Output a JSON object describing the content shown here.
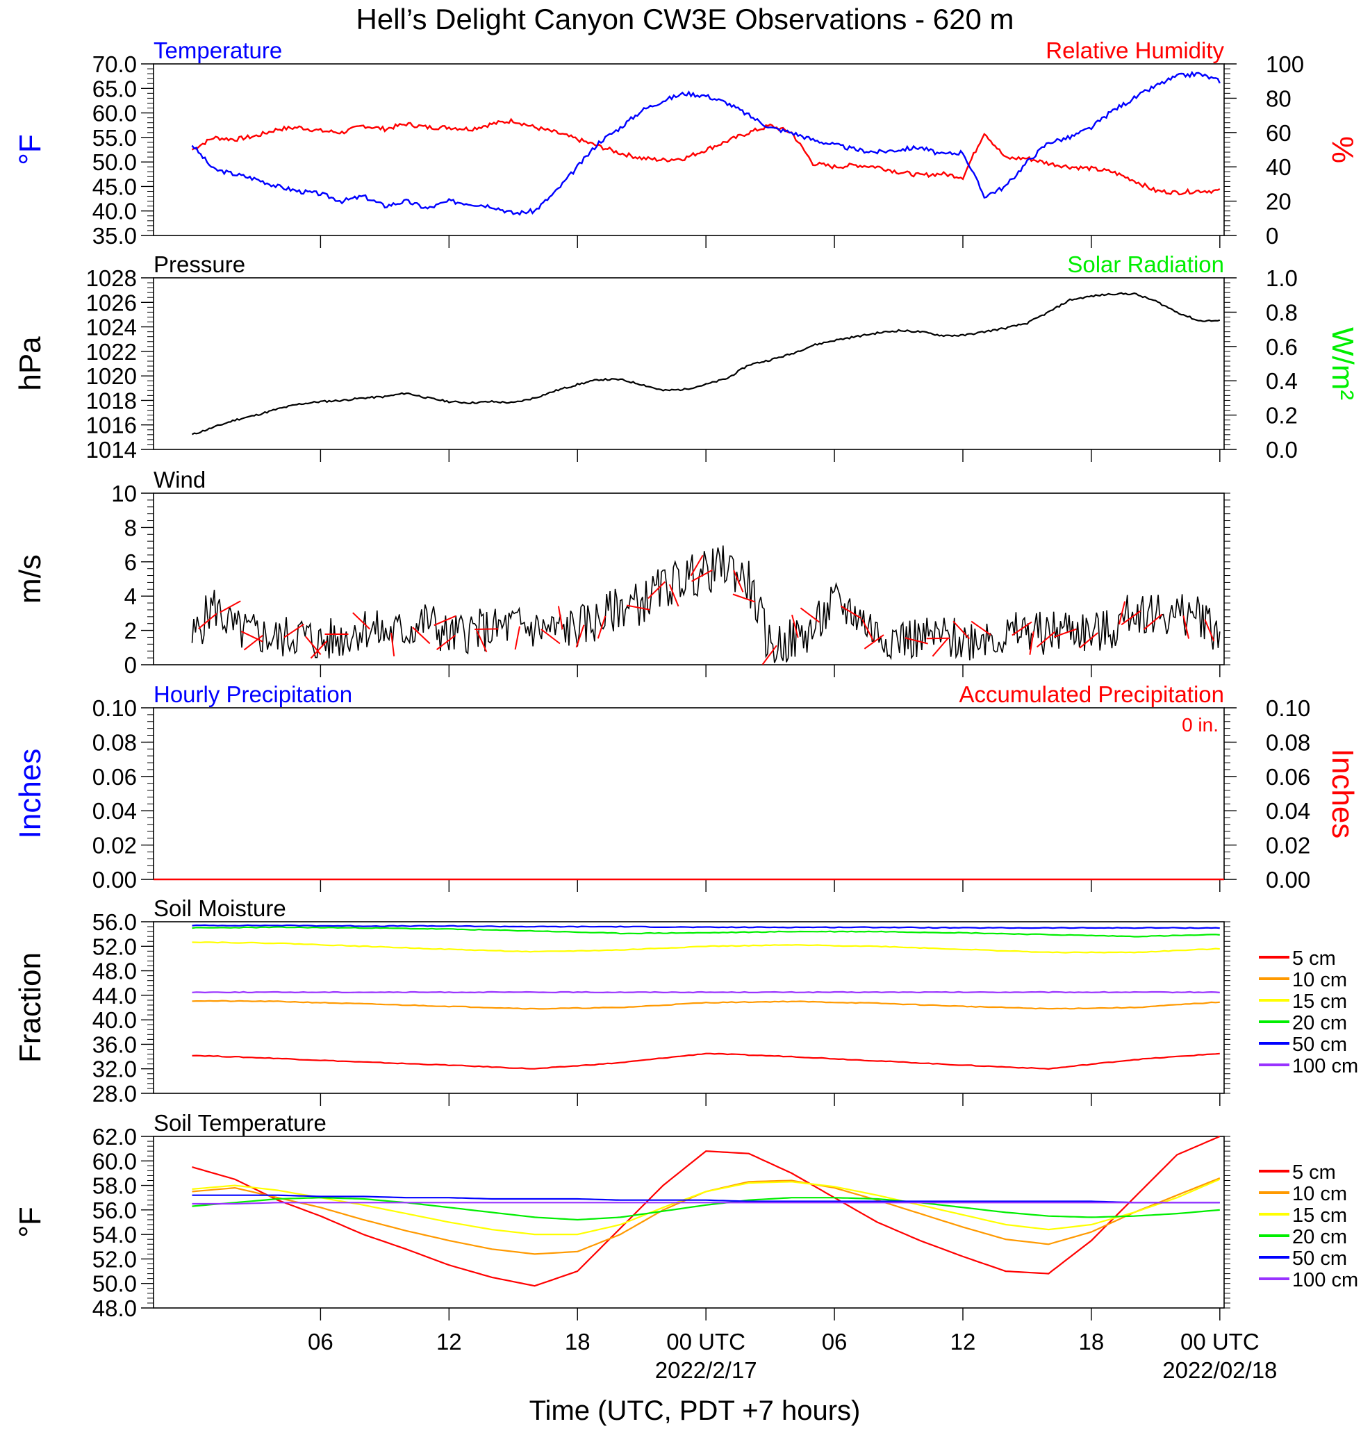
{
  "title": "Hell’s Delight Canyon CW3E Observations - 620 m",
  "xaxis": {
    "label": "Time (UTC, PDT +7 hours)",
    "ticks": [
      "06",
      "12",
      "18",
      "00 UTC",
      "06",
      "12",
      "18",
      "00 UTC"
    ],
    "date_labels": [
      "2022/2/17",
      "2022/02/18"
    ]
  },
  "colors": {
    "temperature": "#0000ff",
    "humidity": "#ff0000",
    "pressure": "#000000",
    "solar": "#00ee00",
    "wind": "#000000",
    "barb": "#ff0000",
    "hourly_precip": "#0000ff",
    "accum_precip": "#ff0000",
    "soil_5cm": "#ff0000",
    "soil_10cm": "#ff9900",
    "soil_15cm": "#ffff00",
    "soil_20cm": "#00ee00",
    "soil_50cm": "#0000ff",
    "soil_100cm": "#9933ff"
  },
  "panels": {
    "temp_rh": {
      "left_title": "Temperature",
      "right_title": "Relative Humidity",
      "left_unit": "°F",
      "right_unit": "%",
      "left_ticks": [
        "70.0",
        "65.0",
        "60.0",
        "55.0",
        "50.0",
        "45.0",
        "40.0",
        "35.0"
      ],
      "right_ticks": [
        "100",
        "80",
        "60",
        "40",
        "20",
        "0"
      ]
    },
    "pressure": {
      "left_title": "Pressure",
      "right_title": "Solar Radiation",
      "left_unit": "hPa",
      "right_unit": "W/m²",
      "left_ticks": [
        "1028",
        "1026",
        "1024",
        "1022",
        "1020",
        "1018",
        "1016",
        "1014"
      ],
      "right_ticks": [
        "1.0",
        "0.8",
        "0.6",
        "0.4",
        "0.2",
        "0.0"
      ]
    },
    "wind": {
      "left_title": "Wind",
      "left_unit": "m/s",
      "left_ticks": [
        "10",
        "8",
        "6",
        "4",
        "2",
        "0"
      ]
    },
    "precip": {
      "left_title": "Hourly Precipitation",
      "right_title": "Accumulated Precipitation",
      "left_unit": "Inches",
      "right_unit": "Inches",
      "total": "0 in.",
      "left_ticks": [
        "0.10",
        "0.08",
        "0.06",
        "0.04",
        "0.02",
        "0.00"
      ],
      "right_ticks": [
        "0.10",
        "0.08",
        "0.06",
        "0.04",
        "0.02",
        "0.00"
      ]
    },
    "soil_moisture": {
      "left_title": "Soil Moisture",
      "left_unit": "Fraction",
      "left_ticks": [
        "56.0",
        "52.0",
        "48.0",
        "44.0",
        "40.0",
        "36.0",
        "32.0",
        "28.0"
      ],
      "legend": [
        "5 cm",
        "10 cm",
        "15 cm",
        "20 cm",
        "50 cm",
        "100 cm"
      ]
    },
    "soil_temp": {
      "left_title": "Soil Temperature",
      "left_unit": "°F",
      "left_ticks": [
        "62.0",
        "60.0",
        "58.0",
        "56.0",
        "54.0",
        "52.0",
        "50.0",
        "48.0"
      ],
      "legend": [
        "5 cm",
        "10 cm",
        "15 cm",
        "20 cm",
        "50 cm",
        "100 cm"
      ]
    }
  },
  "chart_data": [
    {
      "type": "line",
      "title": "Temperature / Relative Humidity",
      "x_hours": [
        0,
        1,
        2,
        3,
        4,
        5,
        6,
        7,
        8,
        9,
        10,
        11,
        12,
        13,
        14,
        15,
        16,
        17,
        18,
        19,
        20,
        21,
        22,
        23,
        24,
        25,
        26,
        27,
        28,
        29,
        30,
        31,
        32,
        33,
        34,
        35,
        36,
        37,
        38,
        39,
        40,
        41,
        42,
        43,
        44,
        45,
        46,
        47,
        48
      ],
      "series": [
        {
          "name": "Temperature",
          "axis": "left",
          "ylim": [
            35,
            70
          ],
          "values": [
            53.5,
            48.5,
            47.5,
            46.5,
            45,
            44,
            43.5,
            42,
            43,
            41,
            42,
            40.5,
            42,
            41.5,
            41,
            39.5,
            40,
            44,
            49,
            54,
            57,
            60.5,
            62.5,
            64,
            63.5,
            62,
            59.5,
            57,
            56,
            54.5,
            53.5,
            52.5,
            52,
            52.5,
            53,
            51.5,
            52,
            43,
            45,
            50,
            54,
            55,
            57,
            60.5,
            63,
            65.5,
            67.5,
            68,
            66.5
          ]
        },
        {
          "name": "Relative Humidity",
          "axis": "right",
          "ylim": [
            0,
            100
          ],
          "values": [
            50,
            57,
            56,
            58,
            62,
            63,
            61,
            60,
            64,
            62,
            65,
            63,
            63,
            62,
            65,
            67,
            63,
            60,
            56,
            52,
            48,
            45,
            44,
            45,
            50,
            55,
            60,
            64,
            60,
            42,
            40,
            41,
            40,
            37,
            35,
            36,
            34,
            60,
            45,
            45,
            42,
            40,
            39,
            37,
            32,
            26,
            25,
            26,
            26
          ]
        }
      ]
    },
    {
      "type": "line",
      "title": "Pressure",
      "x_hours": [
        0,
        1,
        2,
        3,
        4,
        5,
        6,
        7,
        8,
        9,
        10,
        11,
        12,
        13,
        14,
        15,
        16,
        17,
        18,
        19,
        20,
        21,
        22,
        23,
        24,
        25,
        26,
        27,
        28,
        29,
        30,
        31,
        32,
        33,
        34,
        35,
        36,
        37,
        38,
        39,
        40,
        41,
        42,
        43,
        44,
        45,
        46,
        47,
        48
      ],
      "series": [
        {
          "name": "Pressure",
          "axis": "left",
          "ylim": [
            1014,
            1028
          ],
          "values": [
            1015.2,
            1015.8,
            1016.4,
            1016.8,
            1017.3,
            1017.7,
            1017.9,
            1018.0,
            1018.2,
            1018.3,
            1018.6,
            1018.2,
            1017.9,
            1017.8,
            1017.9,
            1017.8,
            1018.2,
            1018.8,
            1019.3,
            1019.7,
            1019.7,
            1019.3,
            1018.8,
            1018.9,
            1019.3,
            1019.8,
            1020.9,
            1021.3,
            1021.8,
            1022.5,
            1022.9,
            1023.2,
            1023.5,
            1023.7,
            1023.6,
            1023.3,
            1023.3,
            1023.6,
            1023.9,
            1024.3,
            1025.2,
            1026.2,
            1026.5,
            1026.7,
            1026.7,
            1026.1,
            1025.2,
            1024.5,
            1024.5
          ]
        },
        {
          "name": "Solar Radiation",
          "axis": "right",
          "ylim": [
            0,
            1
          ],
          "values": []
        }
      ]
    },
    {
      "type": "line",
      "title": "Wind",
      "ylim": [
        0,
        10
      ],
      "x_hours": [
        0,
        1,
        2,
        3,
        4,
        5,
        6,
        7,
        8,
        9,
        10,
        11,
        12,
        13,
        14,
        15,
        16,
        17,
        18,
        19,
        20,
        21,
        22,
        23,
        24,
        25,
        26,
        27,
        28,
        29,
        30,
        31,
        32,
        33,
        34,
        35,
        36,
        37,
        38,
        39,
        40,
        41,
        42,
        43,
        44,
        45,
        46,
        47,
        48
      ],
      "series": [
        {
          "name": "Wind speed",
          "values": [
            1.5,
            3.5,
            2.0,
            1.8,
            1.5,
            1.8,
            1.3,
            1.6,
            2.2,
            1.8,
            2.0,
            2.6,
            1.6,
            2.0,
            2.0,
            2.3,
            2.1,
            2.0,
            2.2,
            2.6,
            3.4,
            3.6,
            4.5,
            5.1,
            5.4,
            5.8,
            4.8,
            1.0,
            1.4,
            2.0,
            3.6,
            3.0,
            1.8,
            1.6,
            1.5,
            1.6,
            1.4,
            1.8,
            1.6,
            2.0,
            1.8,
            2.2,
            1.8,
            2.0,
            3.2,
            3.0,
            2.8,
            3.0,
            1.8
          ]
        }
      ]
    },
    {
      "type": "line",
      "title": "Hourly Precipitation / Accumulated Precipitation",
      "x_hours": [
        0,
        48
      ],
      "series": [
        {
          "name": "Hourly Precipitation",
          "axis": "left",
          "ylim": [
            0,
            0.1
          ],
          "values": [
            0,
            0
          ]
        },
        {
          "name": "Accumulated Precipitation",
          "axis": "right",
          "ylim": [
            0,
            0.1
          ],
          "values": [
            0,
            0
          ]
        }
      ]
    },
    {
      "type": "line",
      "title": "Soil Moisture",
      "ylim": [
        28,
        56
      ],
      "x_hours": [
        0,
        4,
        8,
        12,
        16,
        20,
        24,
        28,
        32,
        36,
        40,
        44,
        48
      ],
      "series": [
        {
          "name": "5 cm",
          "values": [
            34.2,
            33.7,
            33.1,
            32.6,
            32.0,
            33.0,
            34.5,
            34.0,
            33.3,
            32.6,
            32.0,
            33.5,
            34.5
          ]
        },
        {
          "name": "10 cm",
          "values": [
            43.1,
            43.0,
            42.6,
            42.2,
            41.8,
            42.0,
            42.8,
            43.0,
            42.7,
            42.2,
            41.8,
            42.0,
            42.9
          ]
        },
        {
          "name": "15 cm",
          "values": [
            52.7,
            52.5,
            52.0,
            51.5,
            51.1,
            51.4,
            52.0,
            52.2,
            52.0,
            51.5,
            51.0,
            51.0,
            51.6
          ]
        },
        {
          "name": "20 cm",
          "values": [
            55.0,
            55.1,
            55.0,
            54.8,
            54.5,
            54.1,
            54.2,
            54.4,
            54.4,
            54.2,
            53.9,
            53.6,
            53.9
          ]
        },
        {
          "name": "50 cm",
          "values": [
            55.4,
            55.4,
            55.3,
            55.3,
            55.2,
            55.2,
            55.1,
            55.1,
            55.1,
            55.0,
            55.0,
            55.0,
            55.0
          ]
        },
        {
          "name": "100 cm",
          "values": [
            44.5,
            44.5,
            44.5,
            44.5,
            44.5,
            44.5,
            44.5,
            44.5,
            44.5,
            44.5,
            44.5,
            44.5,
            44.5
          ]
        }
      ]
    },
    {
      "type": "line",
      "title": "Soil Temperature",
      "ylim": [
        48,
        62
      ],
      "x_hours": [
        0,
        2,
        4,
        6,
        8,
        10,
        12,
        14,
        16,
        18,
        20,
        22,
        24,
        26,
        28,
        30,
        32,
        34,
        36,
        38,
        40,
        42,
        44,
        46,
        48
      ],
      "series": [
        {
          "name": "5 cm",
          "values": [
            59.5,
            58.5,
            56.8,
            55.5,
            54.0,
            52.8,
            51.5,
            50.5,
            49.8,
            51.0,
            54.5,
            58.0,
            60.8,
            60.6,
            59.0,
            57.0,
            55.0,
            53.5,
            52.2,
            51.0,
            50.8,
            53.5,
            57.0,
            60.5,
            62.0
          ]
        },
        {
          "name": "10 cm",
          "values": [
            57.5,
            57.8,
            57.0,
            56.2,
            55.2,
            54.3,
            53.5,
            52.8,
            52.4,
            52.6,
            54.0,
            56.0,
            57.5,
            58.3,
            58.4,
            57.8,
            56.8,
            55.7,
            54.6,
            53.6,
            53.2,
            54.2,
            55.8,
            57.2,
            58.6
          ]
        },
        {
          "name": "15 cm",
          "values": [
            57.7,
            58.0,
            57.6,
            57.0,
            56.4,
            55.7,
            55.0,
            54.4,
            54.0,
            54.0,
            54.8,
            56.2,
            57.5,
            58.2,
            58.3,
            57.9,
            57.2,
            56.4,
            55.6,
            54.8,
            54.4,
            54.8,
            55.8,
            57.0,
            58.5
          ]
        },
        {
          "name": "20 cm",
          "values": [
            56.3,
            56.6,
            56.9,
            57.0,
            56.9,
            56.6,
            56.2,
            55.8,
            55.4,
            55.2,
            55.4,
            55.9,
            56.4,
            56.8,
            57.0,
            57.0,
            56.9,
            56.6,
            56.2,
            55.8,
            55.5,
            55.4,
            55.5,
            55.7,
            56.0
          ]
        },
        {
          "name": "50 cm",
          "values": [
            57.2,
            57.2,
            57.2,
            57.1,
            57.1,
            57.0,
            57.0,
            56.9,
            56.9,
            56.9,
            56.8,
            56.8,
            56.8,
            56.7,
            56.7,
            56.7,
            56.7,
            56.7,
            56.7,
            56.7,
            56.7,
            56.7,
            56.6,
            56.6,
            56.6
          ]
        },
        {
          "name": "100 cm",
          "values": [
            56.5,
            56.5,
            56.6,
            56.6,
            56.6,
            56.6,
            56.6,
            56.6,
            56.6,
            56.6,
            56.6,
            56.6,
            56.6,
            56.6,
            56.6,
            56.6,
            56.6,
            56.6,
            56.6,
            56.6,
            56.6,
            56.6,
            56.6,
            56.6,
            56.6
          ]
        }
      ]
    }
  ]
}
